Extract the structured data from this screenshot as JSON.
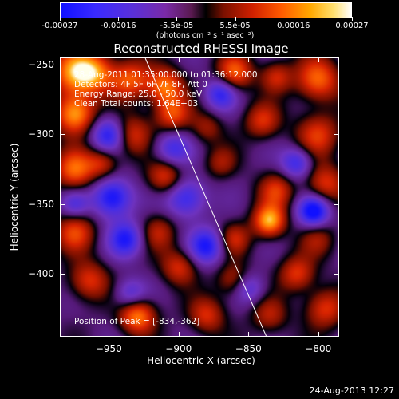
{
  "colorbar": {
    "tick_labels": [
      "-0.00027",
      "-0.00016",
      "-5.5e-05",
      "5.5e-05",
      "0.00016",
      "0.00027"
    ],
    "units_label": "(photons cm⁻² s⁻¹ asec⁻²)"
  },
  "title": "Reconstructed RHESSI Image",
  "info": {
    "time_range": "28-Aug-2011 01:35:00.000 to 01:36:12.000",
    "detectors": "Detectors: 4F 5F 6F 7F 8F, Att 0",
    "energy_range": "Energy Range: 25.0 - 50.0 keV",
    "clean_counts": "Clean   Total counts: 1.64E+03",
    "peak_position": "Position of Peak = [-834,-362]"
  },
  "x_axis": {
    "title": "Heliocentric X (arcsec)",
    "tick_labels": [
      "-950",
      "-900",
      "-850",
      "-800"
    ],
    "range": [
      -985,
      -785
    ]
  },
  "y_axis": {
    "title": "Heliocentric Y (arcsec)",
    "tick_labels": [
      "-250",
      "-300",
      "-350",
      "-400"
    ],
    "range": [
      -445,
      -245
    ]
  },
  "limb_line": {
    "from": [
      -924,
      -245
    ],
    "to": [
      -837,
      -445
    ]
  },
  "timestamp": "24-Aug-2013 12:27",
  "colors": {
    "background": "#000000",
    "foreground": "#ffffff",
    "colormap": [
      "#1010ff",
      "#5a30d8",
      "#7a2aa8",
      "#000000",
      "#d02000",
      "#ff5a00",
      "#ffa800",
      "#ffffff"
    ]
  },
  "chart_data": {
    "type": "heatmap",
    "title": "Reconstructed RHESSI Image",
    "xlabel": "Heliocentric X (arcsec)",
    "ylabel": "Heliocentric Y (arcsec)",
    "xlim": [
      -985,
      -785
    ],
    "ylim": [
      -445,
      -245
    ],
    "clim": [
      -0.00027,
      0.00027
    ],
    "grid": false,
    "peak": [
      -834,
      -362
    ],
    "sources": [
      {
        "x": -975,
        "y": -255,
        "v": 0.00024,
        "r": 12
      },
      {
        "x": -960,
        "y": -255,
        "v": 0.00018,
        "r": 10
      },
      {
        "x": -935,
        "y": -260,
        "v": 0.00019,
        "r": 10
      },
      {
        "x": -910,
        "y": -265,
        "v": 0.00022,
        "r": 9
      },
      {
        "x": -860,
        "y": -255,
        "v": 0.0002,
        "r": 9
      },
      {
        "x": -830,
        "y": -258,
        "v": 0.00014,
        "r": 8
      },
      {
        "x": -800,
        "y": -260,
        "v": 0.00021,
        "r": 11
      },
      {
        "x": -975,
        "y": -285,
        "v": 0.00026,
        "r": 10
      },
      {
        "x": -935,
        "y": -300,
        "v": 0.00017,
        "r": 10
      },
      {
        "x": -905,
        "y": -285,
        "v": 0.00018,
        "r": 9
      },
      {
        "x": -880,
        "y": -295,
        "v": 0.0001,
        "r": 8
      },
      {
        "x": -840,
        "y": -290,
        "v": 0.00015,
        "r": 9
      },
      {
        "x": -800,
        "y": -300,
        "v": 0.00016,
        "r": 11
      },
      {
        "x": -975,
        "y": -325,
        "v": 0.00021,
        "r": 10
      },
      {
        "x": -955,
        "y": -320,
        "v": 0.00014,
        "r": 8
      },
      {
        "x": -910,
        "y": -330,
        "v": 0.00017,
        "r": 9
      },
      {
        "x": -870,
        "y": -320,
        "v": 0.0001,
        "r": 8
      },
      {
        "x": -830,
        "y": -340,
        "v": 0.00015,
        "r": 9
      },
      {
        "x": -795,
        "y": -335,
        "v": 0.00016,
        "r": 10
      },
      {
        "x": -835,
        "y": -362,
        "v": 0.00027,
        "r": 8
      },
      {
        "x": -860,
        "y": -375,
        "v": 0.00013,
        "r": 8
      },
      {
        "x": -975,
        "y": -370,
        "v": 0.00017,
        "r": 10
      },
      {
        "x": -915,
        "y": -370,
        "v": 0.00012,
        "r": 9
      },
      {
        "x": -800,
        "y": -375,
        "v": 0.0001,
        "r": 9
      },
      {
        "x": -965,
        "y": -405,
        "v": 0.00016,
        "r": 10
      },
      {
        "x": -900,
        "y": -395,
        "v": 0.00015,
        "r": 9
      },
      {
        "x": -860,
        "y": -405,
        "v": 0.00014,
        "r": 9
      },
      {
        "x": -815,
        "y": -400,
        "v": 0.00016,
        "r": 9
      },
      {
        "x": -930,
        "y": -430,
        "v": 0.00024,
        "r": 9
      },
      {
        "x": -880,
        "y": -430,
        "v": 0.00015,
        "r": 9
      },
      {
        "x": -835,
        "y": -430,
        "v": 0.00012,
        "r": 9
      },
      {
        "x": -795,
        "y": -425,
        "v": 0.00016,
        "r": 10
      },
      {
        "x": -950,
        "y": -300,
        "v": -0.00022,
        "r": 9
      },
      {
        "x": -948,
        "y": -345,
        "v": -0.00024,
        "r": 10
      },
      {
        "x": -938,
        "y": -375,
        "v": -0.0002,
        "r": 9
      },
      {
        "x": -895,
        "y": -345,
        "v": -0.00019,
        "r": 10
      },
      {
        "x": -880,
        "y": -380,
        "v": -0.00021,
        "r": 9
      },
      {
        "x": -870,
        "y": -270,
        "v": -0.00018,
        "r": 8
      },
      {
        "x": -905,
        "y": -310,
        "v": -0.00016,
        "r": 9
      },
      {
        "x": -815,
        "y": -320,
        "v": -0.00018,
        "r": 8
      },
      {
        "x": -803,
        "y": -355,
        "v": -0.00026,
        "r": 8
      },
      {
        "x": -850,
        "y": -410,
        "v": -0.00015,
        "r": 8
      },
      {
        "x": -975,
        "y": -350,
        "v": -0.00012,
        "r": 7
      },
      {
        "x": -935,
        "y": -415,
        "v": -0.00014,
        "r": 8
      }
    ]
  }
}
